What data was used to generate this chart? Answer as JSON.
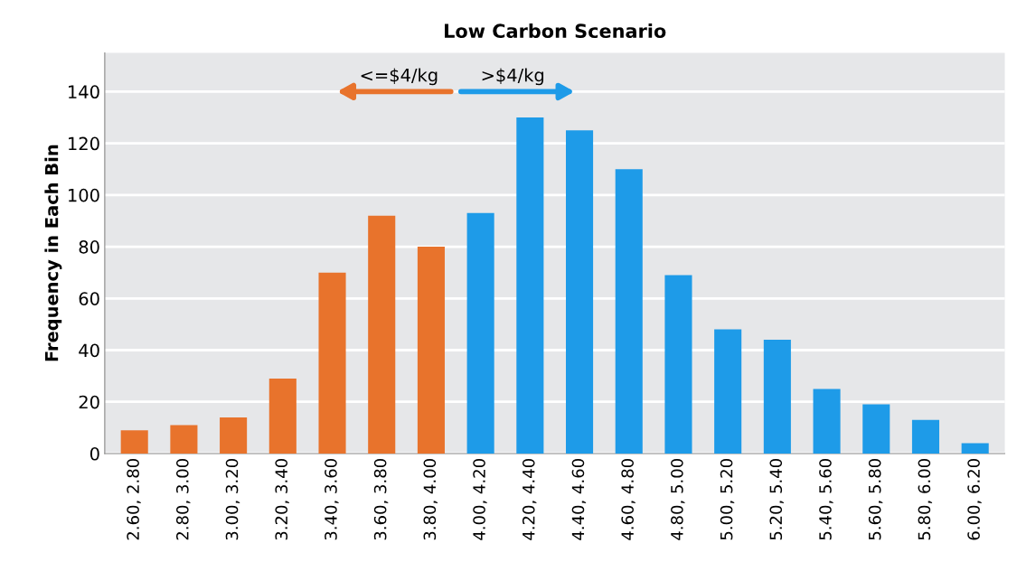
{
  "chart_data": {
    "type": "bar",
    "title": "Low Carbon Scenario",
    "ylabel": "Frequency in Each Bin",
    "categories": [
      "2.60, 2.80",
      "2.80, 3.00",
      "3.00, 3.20",
      "3.20, 3.40",
      "3.40, 3.60",
      "3.60, 3.80",
      "3.80, 4.00",
      "4.00, 4.20",
      "4.20, 4.40",
      "4.40, 4.60",
      "4.60, 4.80",
      "4.80, 5.00",
      "5.00, 5.20",
      "5.20, 5.40",
      "5.40, 5.60",
      "5.60, 5.80",
      "5.80, 6.00",
      "6.00, 6.20"
    ],
    "values": [
      9,
      11,
      14,
      29,
      70,
      92,
      80,
      93,
      130,
      125,
      110,
      69,
      48,
      44,
      25,
      19,
      13,
      4
    ],
    "colors": [
      "#e8732c",
      "#e8732c",
      "#e8732c",
      "#e8732c",
      "#e8732c",
      "#e8732c",
      "#e8732c",
      "#1e9be8",
      "#1e9be8",
      "#1e9be8",
      "#1e9be8",
      "#1e9be8",
      "#1e9be8",
      "#1e9be8",
      "#1e9be8",
      "#1e9be8",
      "#1e9be8",
      "#1e9be8"
    ],
    "ylim": [
      0,
      155
    ],
    "yticks": [
      0,
      20,
      40,
      60,
      80,
      100,
      120,
      140
    ],
    "grid": "y",
    "annotations": [
      "<=$4/kg",
      ">$4/kg"
    ]
  }
}
